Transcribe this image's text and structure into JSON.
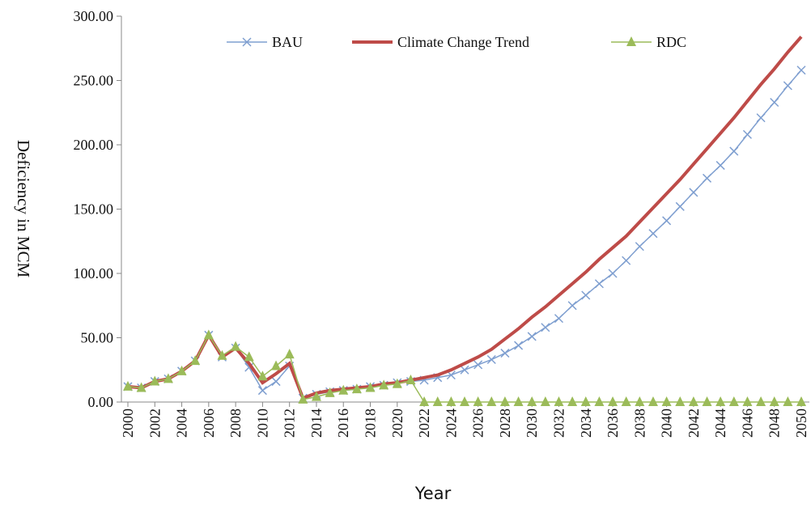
{
  "chart_data": {
    "type": "line",
    "y_label": "Deficiency in MCM",
    "x_label": "Year",
    "x": [
      2000,
      2001,
      2002,
      2003,
      2004,
      2005,
      2006,
      2007,
      2008,
      2009,
      2010,
      2011,
      2012,
      2013,
      2014,
      2015,
      2016,
      2017,
      2018,
      2019,
      2020,
      2021,
      2022,
      2023,
      2024,
      2025,
      2026,
      2027,
      2028,
      2029,
      2030,
      2031,
      2032,
      2033,
      2034,
      2035,
      2036,
      2037,
      2038,
      2039,
      2040,
      2041,
      2042,
      2043,
      2044,
      2045,
      2046,
      2047,
      2048,
      2049,
      2050
    ],
    "xlim": [
      2000,
      2050
    ],
    "xticks": [
      2000,
      2002,
      2004,
      2006,
      2008,
      2010,
      2012,
      2014,
      2016,
      2018,
      2020,
      2022,
      2024,
      2026,
      2028,
      2030,
      2032,
      2034,
      2036,
      2038,
      2040,
      2042,
      2044,
      2046,
      2048,
      2050
    ],
    "ylim": [
      0,
      300
    ],
    "yticks": [
      {
        "value": 0,
        "label": "0.00"
      },
      {
        "value": 50,
        "label": "50.00"
      },
      {
        "value": 100,
        "label": "100.00"
      },
      {
        "value": 150,
        "label": "150.00"
      },
      {
        "value": 200,
        "label": "200.00"
      },
      {
        "value": 250,
        "label": "250.00"
      },
      {
        "value": 300,
        "label": "300.00"
      }
    ],
    "legend": "top",
    "series": [
      {
        "name": "BAU",
        "color": "#7f9fd0",
        "marker": "x",
        "values": [
          12,
          11,
          16,
          18,
          24,
          32,
          52,
          35,
          42,
          27,
          9,
          16,
          28,
          3,
          6,
          8,
          9,
          10,
          12,
          13,
          15,
          16,
          17,
          19,
          21,
          25,
          29,
          33,
          38,
          44,
          51,
          58,
          65,
          75,
          83,
          92,
          100,
          110,
          121,
          131,
          141,
          152,
          163,
          174,
          184,
          195,
          208,
          221,
          233,
          246,
          258
        ]
      },
      {
        "name": "Climate Change Trend",
        "color": "#be4b48",
        "marker": "none",
        "values": [
          12,
          11,
          16,
          18,
          24,
          32,
          52,
          35,
          42,
          30,
          15,
          22,
          30,
          3,
          7,
          9,
          10,
          11,
          12,
          14,
          15,
          17,
          19,
          21,
          25,
          30,
          35,
          41,
          49,
          57,
          66,
          74,
          83,
          92,
          101,
          111,
          120,
          129,
          140,
          151,
          162,
          173,
          185,
          197,
          209,
          221,
          234,
          247,
          259,
          272,
          284
        ]
      },
      {
        "name": "RDC",
        "color": "#9bbb59",
        "marker": "triangle",
        "values": [
          12,
          11,
          16,
          18,
          24,
          32,
          52,
          36,
          43,
          35,
          20,
          28,
          37,
          2,
          4,
          7,
          9,
          10,
          11,
          13,
          14,
          17,
          0,
          0,
          0,
          0,
          0,
          0,
          0,
          0,
          0,
          0,
          0,
          0,
          0,
          0,
          0,
          0,
          0,
          0,
          0,
          0,
          0,
          0,
          0,
          0,
          0,
          0,
          0,
          0,
          0
        ]
      }
    ]
  }
}
